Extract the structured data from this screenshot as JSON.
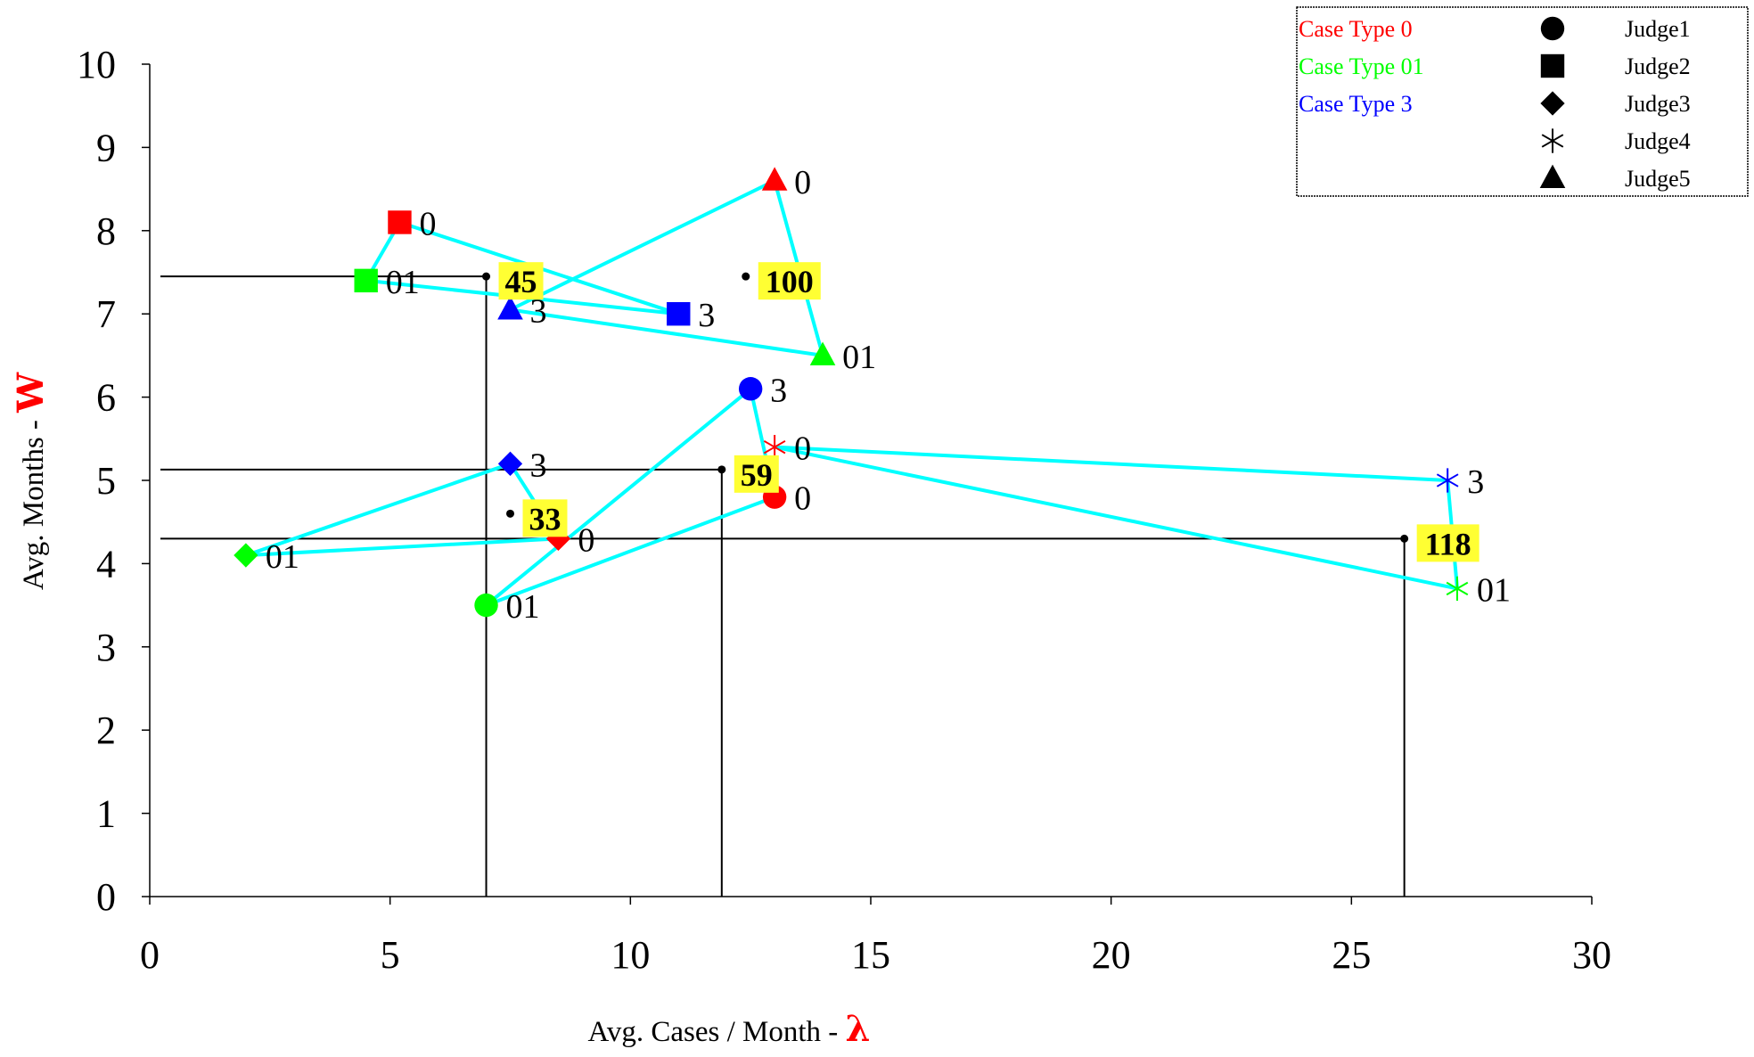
{
  "chart_data": {
    "type": "scatter",
    "xlabel": "Avg. Cases / Month - ",
    "xlabel_symbol": "λ",
    "ylabel": "Avg. Months - ",
    "ylabel_symbol": "W",
    "xlim": [
      0,
      30
    ],
    "ylim": [
      0,
      10
    ],
    "xticks": [
      "0",
      "5",
      "10",
      "15",
      "20",
      "25",
      "30"
    ],
    "yticks": [
      "0",
      "1",
      "2",
      "3",
      "4",
      "5",
      "6",
      "7",
      "8",
      "9",
      "10"
    ],
    "grid": false,
    "legend_position": "top-right",
    "case_types": [
      {
        "name": "Case Type 0",
        "color": "#ff0000"
      },
      {
        "name": "Case Type 01",
        "color": "#00ff00"
      },
      {
        "name": "Case Type 3",
        "color": "#0000ff"
      }
    ],
    "judges": [
      {
        "name": "Judge1",
        "marker": "circle"
      },
      {
        "name": "Judge2",
        "marker": "square"
      },
      {
        "name": "Judge3",
        "marker": "diamond"
      },
      {
        "name": "Judge4",
        "marker": "asterisk"
      },
      {
        "name": "Judge5",
        "marker": "triangle"
      }
    ],
    "points": [
      {
        "judge": "Judge1",
        "case_type": 0,
        "label": "0",
        "x": 13.0,
        "y": 4.8
      },
      {
        "judge": "Judge1",
        "case_type": 1,
        "label": "01",
        "x": 7.0,
        "y": 3.5
      },
      {
        "judge": "Judge1",
        "case_type": 2,
        "label": "3",
        "x": 12.5,
        "y": 6.1
      },
      {
        "judge": "Judge2",
        "case_type": 0,
        "label": "0",
        "x": 5.2,
        "y": 8.1
      },
      {
        "judge": "Judge2",
        "case_type": 1,
        "label": "01",
        "x": 4.5,
        "y": 7.4
      },
      {
        "judge": "Judge2",
        "case_type": 2,
        "label": "3",
        "x": 11.0,
        "y": 7.0
      },
      {
        "judge": "Judge3",
        "case_type": 0,
        "label": "0",
        "x": 8.5,
        "y": 4.3
      },
      {
        "judge": "Judge3",
        "case_type": 1,
        "label": "01",
        "x": 2.0,
        "y": 4.1
      },
      {
        "judge": "Judge3",
        "case_type": 2,
        "label": "3",
        "x": 7.5,
        "y": 5.2
      },
      {
        "judge": "Judge4",
        "case_type": 0,
        "label": "0",
        "x": 13.0,
        "y": 5.4
      },
      {
        "judge": "Judge4",
        "case_type": 1,
        "label": "01",
        "x": 27.2,
        "y": 3.7
      },
      {
        "judge": "Judge4",
        "case_type": 2,
        "label": "3",
        "x": 27.0,
        "y": 5.0
      },
      {
        "judge": "Judge5",
        "case_type": 0,
        "label": "0",
        "x": 13.0,
        "y": 8.6
      },
      {
        "judge": "Judge5",
        "case_type": 1,
        "label": "01",
        "x": 14.0,
        "y": 6.5
      },
      {
        "judge": "Judge5",
        "case_type": 2,
        "label": "3",
        "x": 7.5,
        "y": 7.05
      }
    ],
    "triangles": [
      {
        "judge": "Judge1",
        "path": [
          [
            13.0,
            4.8
          ],
          [
            12.5,
            6.1
          ],
          [
            7.0,
            3.5
          ],
          [
            13.0,
            4.8
          ]
        ]
      },
      {
        "judge": "Judge2",
        "path": [
          [
            5.2,
            8.1
          ],
          [
            11.0,
            7.0
          ],
          [
            4.5,
            7.4
          ],
          [
            5.2,
            8.1
          ]
        ]
      },
      {
        "judge": "Judge3",
        "path": [
          [
            7.5,
            5.2
          ],
          [
            8.5,
            4.3
          ],
          [
            2.0,
            4.1
          ],
          [
            7.5,
            5.2
          ]
        ]
      },
      {
        "judge": "Judge4",
        "path": [
          [
            13.0,
            5.4
          ],
          [
            27.0,
            5.0
          ],
          [
            27.2,
            3.7
          ],
          [
            13.0,
            5.4
          ]
        ]
      },
      {
        "judge": "Judge5",
        "path": [
          [
            13.0,
            8.6
          ],
          [
            14.0,
            6.5
          ],
          [
            7.5,
            7.05
          ],
          [
            13.0,
            8.6
          ]
        ]
      }
    ],
    "centroids": [
      {
        "label": "45",
        "x": 7.0,
        "y": 7.45,
        "guide": true
      },
      {
        "label": "100",
        "x": 12.4,
        "y": 7.45,
        "guide": false
      },
      {
        "label": "59",
        "x": 11.9,
        "y": 5.13,
        "guide": true
      },
      {
        "label": "33",
        "x": 7.5,
        "y": 4.6,
        "guide": false
      },
      {
        "label": "118",
        "x": 26.1,
        "y": 4.3,
        "guide": true
      }
    ],
    "colors": {
      "outline": "#00ffff",
      "annotation_bg": "#ffff33",
      "axis_symbol": "#ff0000"
    }
  }
}
